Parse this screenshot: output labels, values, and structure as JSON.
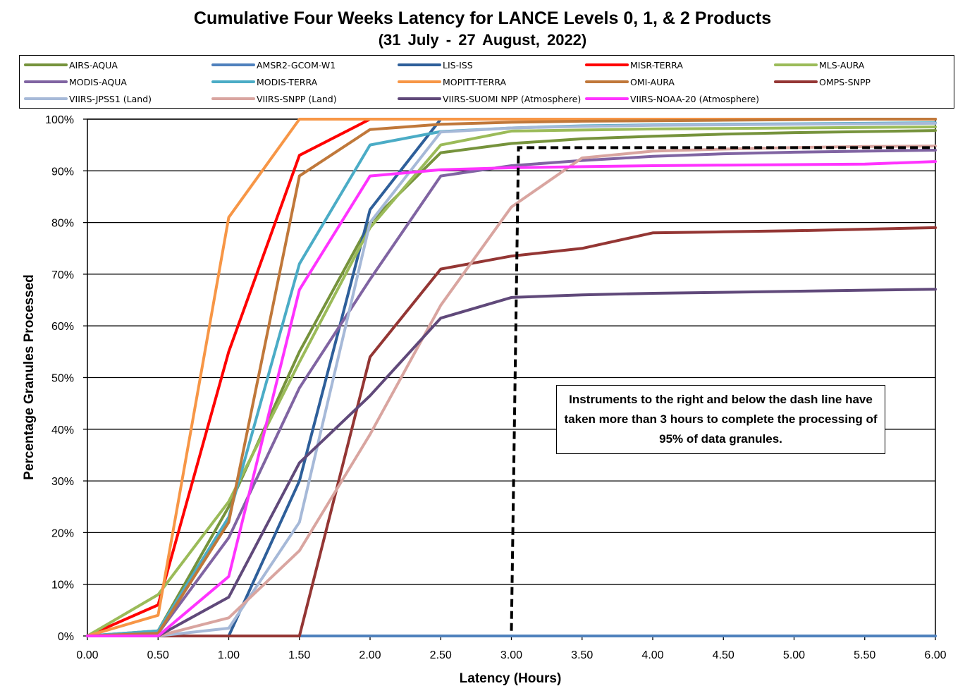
{
  "chart_data": {
    "type": "line",
    "title": "Cumulative Four Weeks Latency  for LANCE Levels 0, 1, & 2 Products",
    "subtitle": "(31  July   -  27  August,  2022)",
    "xlabel": "Latency (Hours)",
    "ylabel": "Percentage Granules Processed",
    "xlim": [
      0,
      6
    ],
    "ylim": [
      0,
      100
    ],
    "x_ticks": [
      "0.00",
      "0.50",
      "1.00",
      "1.50",
      "2.00",
      "2.50",
      "3.00",
      "3.50",
      "4.00",
      "4.50",
      "5.00",
      "5.50",
      "6.00"
    ],
    "y_ticks": [
      "0%",
      "10%",
      "20%",
      "30%",
      "40%",
      "50%",
      "60%",
      "70%",
      "80%",
      "90%",
      "100%"
    ],
    "grid": "horizontal",
    "legend_position": "top",
    "x": [
      0,
      0.5,
      1,
      1.5,
      2,
      2.5,
      3,
      3.5,
      4,
      4.5,
      5,
      5.5,
      6
    ],
    "series": [
      {
        "name": "AIRS-AQUA",
        "color": "#76933c",
        "values": [
          0,
          1,
          25,
          55,
          80,
          93.5,
          95.3,
          96.2,
          96.7,
          97.1,
          97.4,
          97.6,
          97.8
        ]
      },
      {
        "name": "AMSR2-GCOM-W1",
        "color": "#4f81bd",
        "values": [
          0,
          0,
          0,
          0,
          0,
          0,
          0,
          0,
          0,
          0,
          0,
          0,
          0
        ]
      },
      {
        "name": "LIS-ISS",
        "color": "#2e5f9a",
        "values": [
          0,
          0,
          0,
          30,
          82.5,
          100,
          100,
          100,
          100,
          100,
          100,
          100,
          100
        ]
      },
      {
        "name": "MISR-TERRA",
        "color": "#ff0000",
        "values": [
          0,
          6,
          55,
          93,
          100,
          100,
          100,
          100,
          100,
          100,
          100,
          100,
          100
        ]
      },
      {
        "name": "MLS-AURA",
        "color": "#9bbb59",
        "values": [
          0,
          8,
          26,
          53,
          79,
          95,
          97.7,
          97.9,
          98.1,
          98.2,
          98.3,
          98.4,
          98.5
        ]
      },
      {
        "name": "MODIS-AQUA",
        "color": "#8064a2",
        "values": [
          0,
          0.5,
          19,
          48,
          69,
          89,
          91,
          92,
          92.8,
          93.3,
          93.6,
          93.8,
          94
        ]
      },
      {
        "name": "MODIS-TERRA",
        "color": "#4bacc6",
        "values": [
          0,
          1,
          23,
          72,
          95,
          97.6,
          98.3,
          98.7,
          98.9,
          99,
          99.1,
          99.2,
          99.3
        ]
      },
      {
        "name": "MOPITT-TERRA",
        "color": "#f79646",
        "values": [
          0,
          4,
          81,
          100,
          100,
          100,
          100,
          100,
          100,
          100,
          100,
          100,
          100
        ]
      },
      {
        "name": "OMI-AURA",
        "color": "#c0783a",
        "values": [
          0,
          0.5,
          22,
          89,
          98,
          99,
          99.4,
          99.6,
          99.7,
          99.8,
          99.9,
          100,
          100
        ]
      },
      {
        "name": "OMPS-SNPP",
        "color": "#943634",
        "values": [
          0,
          0,
          0,
          0,
          54,
          71,
          73.5,
          75,
          78,
          78.2,
          78.4,
          78.7,
          79
        ]
      },
      {
        "name": "VIIRS-JPSS1 (Land)",
        "color": "#a6b9d8",
        "values": [
          0,
          0,
          1.5,
          22,
          80,
          97.5,
          98.3,
          98.6,
          98.8,
          98.9,
          99,
          99.1,
          99.2
        ]
      },
      {
        "name": "VIIRS-SNPP (Land)",
        "color": "#d9a5a0",
        "values": [
          0,
          0,
          3.5,
          16.5,
          39,
          64,
          83,
          92.5,
          93.8,
          94.2,
          94.5,
          94.7,
          94.8
        ]
      },
      {
        "name": "VIIRS-SUOMI NPP (Atmosphere)",
        "color": "#60497a",
        "values": [
          0,
          0,
          7.5,
          33.5,
          46.5,
          61.5,
          65.5,
          66,
          66.3,
          66.5,
          66.7,
          66.9,
          67.1
        ]
      },
      {
        "name": "VIIRS-NOAA-20 (Atmosphere)",
        "color": "#ff33ff",
        "values": [
          0,
          0,
          11.5,
          67,
          89,
          90.2,
          90.6,
          90.8,
          91,
          91.1,
          91.2,
          91.3,
          91.8
        ]
      }
    ],
    "threshold_line": {
      "x_start": 3.0,
      "y_start": 1,
      "x_corner": 3.05,
      "y_end": 94.5,
      "x_end": 6.0,
      "color": "#000000",
      "style": "dashed"
    },
    "annotation": "Instruments to the right and below the dash line have taken more than 3 hours to complete the processing of 95% of data granules."
  }
}
